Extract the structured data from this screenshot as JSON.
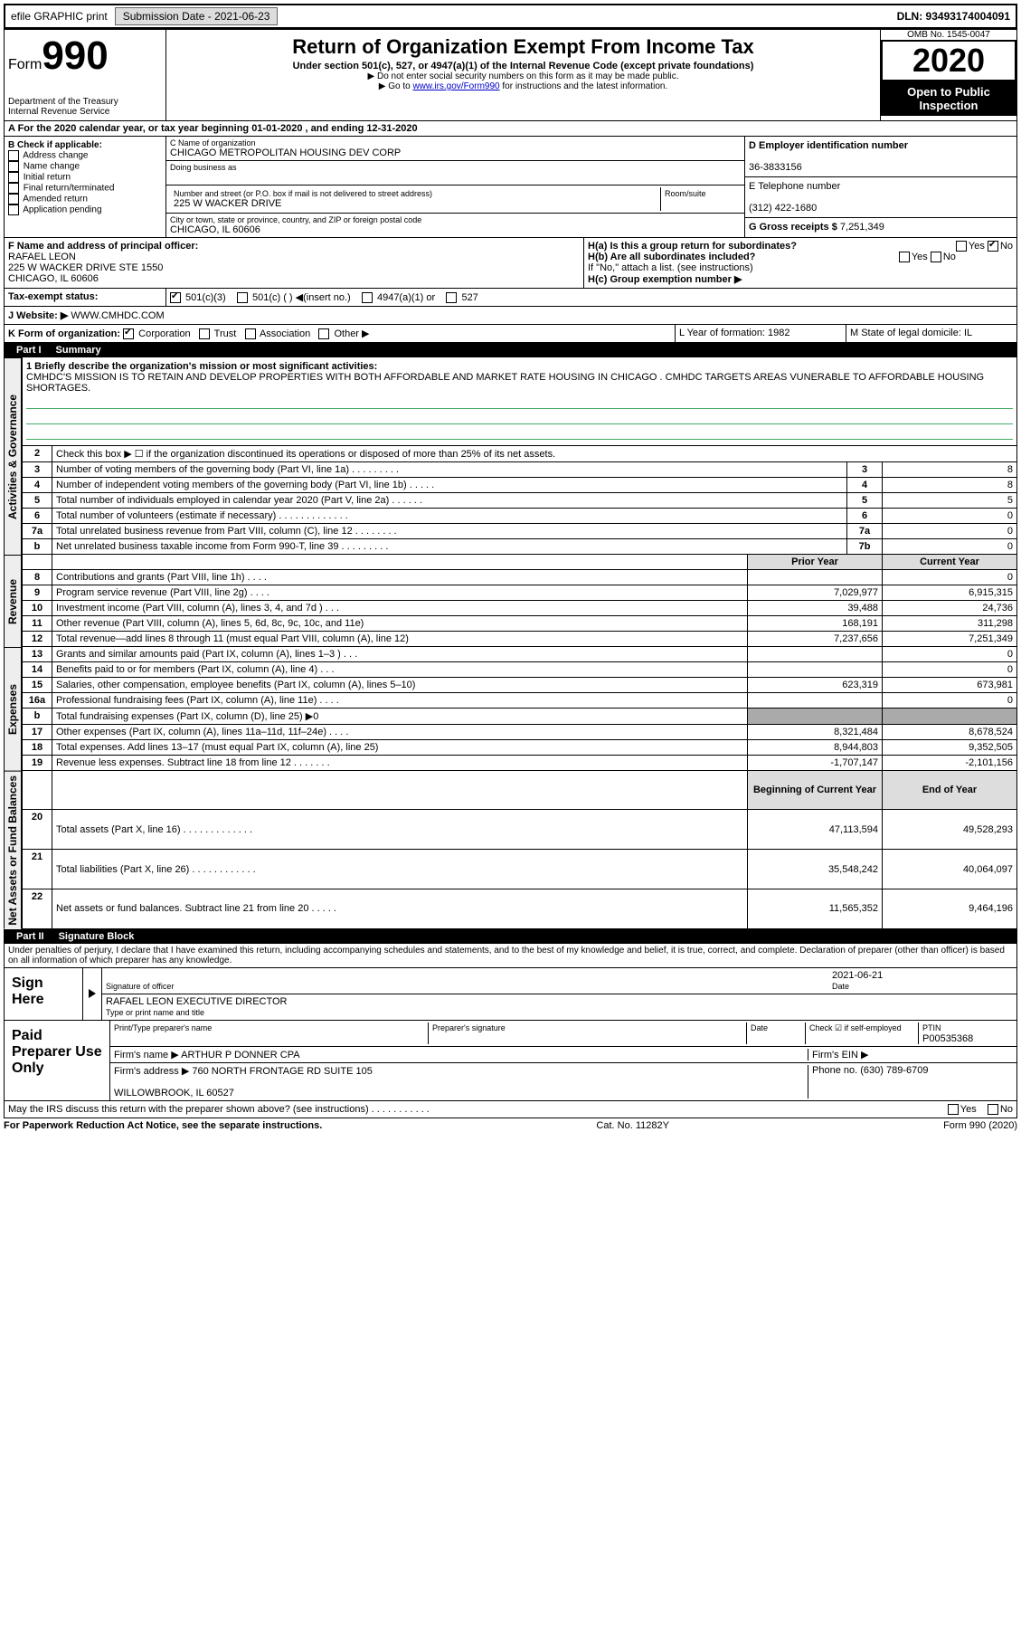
{
  "topbar": {
    "efile": "efile GRAPHIC print",
    "submission": "Submission Date - 2021-06-23",
    "dln": "DLN: 93493174004091"
  },
  "header": {
    "form": "Form",
    "formnum": "990",
    "dept": "Department of the Treasury\nInternal Revenue Service",
    "title": "Return of Organization Exempt From Income Tax",
    "subtitle": "Under section 501(c), 527, or 4947(a)(1) of the Internal Revenue Code (except private foundations)",
    "note1": "▶ Do not enter social security numbers on this form as it may be made public.",
    "note2_pre": "▶ Go to ",
    "note2_link": "www.irs.gov/Form990",
    "note2_post": " for instructions and the latest information.",
    "omb": "OMB No. 1545-0047",
    "year": "2020",
    "open": "Open to Public Inspection"
  },
  "rowA": "A For the 2020 calendar year, or tax year beginning 01-01-2020    , and ending 12-31-2020",
  "colB": {
    "label": "B Check if applicable:",
    "opts": [
      "Address change",
      "Name change",
      "Initial return",
      "Final return/terminated",
      "Amended return",
      "Application pending"
    ]
  },
  "colC": {
    "name_label": "C Name of organization",
    "name": "CHICAGO METROPOLITAN HOUSING DEV CORP",
    "dba_label": "Doing business as",
    "addr_label": "Number and street (or P.O. box if mail is not delivered to street address)",
    "addr": "225 W WACKER DRIVE",
    "room_label": "Room/suite",
    "city_label": "City or town, state or province, country, and ZIP or foreign postal code",
    "city": "CHICAGO, IL  60606"
  },
  "colD": {
    "ein_label": "D Employer identification number",
    "ein": "36-3833156",
    "phone_label": "E Telephone number",
    "phone": "(312) 422-1680",
    "gross_label": "G Gross receipts $",
    "gross": "7,251,349"
  },
  "rowF": {
    "label": "F  Name and address of principal officer:",
    "name": "RAFAEL LEON",
    "addr": "225 W WACKER DRIVE STE 1550\nCHICAGO, IL  60606"
  },
  "rowH": {
    "a": "H(a)  Is this a group return for subordinates?",
    "b": "H(b)  Are all subordinates included?",
    "b_note": "If \"No,\" attach a list. (see instructions)",
    "c": "H(c)  Group exemption number ▶"
  },
  "rowI": {
    "label": "Tax-exempt status:",
    "opts": [
      "501(c)(3)",
      "501(c) (  ) ◀(insert no.)",
      "4947(a)(1) or",
      "527"
    ]
  },
  "rowJ": {
    "label": "J Website: ▶",
    "val": "WWW.CMHDC.COM"
  },
  "rowK": {
    "label": "K Form of organization:",
    "opts": [
      "Corporation",
      "Trust",
      "Association",
      "Other ▶"
    ],
    "L": "L Year of formation: 1982",
    "M": "M State of legal domicile: IL"
  },
  "part1": {
    "label": "Part I",
    "title": "Summary"
  },
  "mission": {
    "q": "1  Briefly describe the organization's mission or most significant activities:",
    "text": "CMHDC'S MISSION IS TO RETAIN AND DEVELOP PROPERTIES WITH BOTH AFFORDABLE AND MARKET RATE HOUSING IN CHICAGO . CMHDC TARGETS AREAS VUNERABLE TO AFFORDABLE HOUSING SHORTAGES."
  },
  "gov_rows": [
    {
      "n": "2",
      "d": "Check this box ▶ ☐  if the organization discontinued its operations or disposed of more than 25% of its net assets.",
      "b": "",
      "v": ""
    },
    {
      "n": "3",
      "d": "Number of voting members of the governing body (Part VI, line 1a)  .    .    .    .    .    .    .    .    .",
      "b": "3",
      "v": "8"
    },
    {
      "n": "4",
      "d": "Number of independent voting members of the governing body (Part VI, line 1b)  .    .    .    .    .",
      "b": "4",
      "v": "8"
    },
    {
      "n": "5",
      "d": "Total number of individuals employed in calendar year 2020 (Part V, line 2a)  .    .    .    .    .    .",
      "b": "5",
      "v": "5"
    },
    {
      "n": "6",
      "d": "Total number of volunteers (estimate if necessary)   .    .    .    .    .    .    .    .    .    .    .    .    .",
      "b": "6",
      "v": "0"
    },
    {
      "n": "7a",
      "d": "Total unrelated business revenue from Part VIII, column (C), line 12  .    .    .    .    .    .    .    .",
      "b": "7a",
      "v": "0"
    },
    {
      "n": "b",
      "d": "Net unrelated business taxable income from Form 990-T, line 39   .    .    .    .    .    .    .    .    .",
      "b": "7b",
      "v": "0"
    }
  ],
  "fin_header": {
    "prior": "Prior Year",
    "curr": "Current Year"
  },
  "rev_rows": [
    {
      "n": "8",
      "d": "Contributions and grants (Part VIII, line 1h)  .    .    .    .",
      "p": "",
      "c": "0"
    },
    {
      "n": "9",
      "d": "Program service revenue (Part VIII, line 2g)   .    .    .    .",
      "p": "7,029,977",
      "c": "6,915,315"
    },
    {
      "n": "10",
      "d": "Investment income (Part VIII, column (A), lines 3, 4, and 7d )   .    .    .",
      "p": "39,488",
      "c": "24,736"
    },
    {
      "n": "11",
      "d": "Other revenue (Part VIII, column (A), lines 5, 6d, 8c, 9c, 10c, and 11e)",
      "p": "168,191",
      "c": "311,298"
    },
    {
      "n": "12",
      "d": "Total revenue—add lines 8 through 11 (must equal Part VIII, column (A), line 12)",
      "p": "7,237,656",
      "c": "7,251,349"
    }
  ],
  "exp_rows": [
    {
      "n": "13",
      "d": "Grants and similar amounts paid (Part IX, column (A), lines 1–3 )  .    .    .",
      "p": "",
      "c": "0"
    },
    {
      "n": "14",
      "d": "Benefits paid to or for members (Part IX, column (A), line 4)  .    .    .",
      "p": "",
      "c": "0"
    },
    {
      "n": "15",
      "d": "Salaries, other compensation, employee benefits (Part IX, column (A), lines 5–10)",
      "p": "623,319",
      "c": "673,981"
    },
    {
      "n": "16a",
      "d": "Professional fundraising fees (Part IX, column (A), line 11e)  .    .    .    .",
      "p": "",
      "c": "0"
    },
    {
      "n": "b",
      "d": "Total fundraising expenses (Part IX, column (D), line 25) ▶0",
      "p": "shaded",
      "c": "shaded"
    },
    {
      "n": "17",
      "d": "Other expenses (Part IX, column (A), lines 11a–11d, 11f–24e)  .    .    .    .",
      "p": "8,321,484",
      "c": "8,678,524"
    },
    {
      "n": "18",
      "d": "Total expenses. Add lines 13–17 (must equal Part IX, column (A), line 25)",
      "p": "8,944,803",
      "c": "9,352,505"
    },
    {
      "n": "19",
      "d": "Revenue less expenses. Subtract line 18 from line 12  .    .    .    .    .    .    .",
      "p": "-1,707,147",
      "c": "-2,101,156"
    }
  ],
  "net_header": {
    "beg": "Beginning of Current Year",
    "end": "End of Year"
  },
  "net_rows": [
    {
      "n": "20",
      "d": "Total assets (Part X, line 16)  .    .    .    .    .    .    .    .    .    .    .    .    .",
      "p": "47,113,594",
      "c": "49,528,293"
    },
    {
      "n": "21",
      "d": "Total liabilities (Part X, line 26)  .    .    .    .    .    .    .    .    .    .    .    .",
      "p": "35,548,242",
      "c": "40,064,097"
    },
    {
      "n": "22",
      "d": "Net assets or fund balances. Subtract line 21 from line 20  .    .    .    .    .",
      "p": "11,565,352",
      "c": "9,464,196"
    }
  ],
  "part2": {
    "label": "Part II",
    "title": "Signature Block",
    "penalty": "Under penalties of perjury, I declare that I have examined this return, including accompanying schedules and statements, and to the best of my knowledge and belief, it is true, correct, and complete. Declaration of preparer (other than officer) is based on all information of which preparer has any knowledge."
  },
  "sign": {
    "label": "Sign Here",
    "sig_label": "Signature of officer",
    "date_label": "Date",
    "date": "2021-06-21",
    "name": "RAFAEL LEON  EXECUTIVE DIRECTOR",
    "name_label": "Type or print name and title"
  },
  "paid": {
    "label": "Paid Preparer Use Only",
    "col1": "Print/Type preparer's name",
    "col2": "Preparer's signature",
    "col3": "Date",
    "col4_label": "Check ☑ if self-employed",
    "col5_label": "PTIN",
    "ptin": "P00535368",
    "firm_label": "Firm's name   ▶",
    "firm": "ARTHUR P DONNER CPA",
    "ein_label": "Firm's EIN ▶",
    "addr_label": "Firm's address ▶",
    "addr": "760 NORTH FRONTAGE RD SUITE 105",
    "addr2": "WILLOWBROOK, IL  60527",
    "phone_label": "Phone no.",
    "phone": "(630) 789-6709"
  },
  "discuss": "May the IRS discuss this return with the preparer shown above? (see instructions)   .    .    .    .    .    .    .    .    .    .    .",
  "footer": {
    "left": "For Paperwork Reduction Act Notice, see the separate instructions.",
    "mid": "Cat. No. 11282Y",
    "right": "Form 990 (2020)"
  },
  "labels": {
    "gov": "Activities & Governance",
    "rev": "Revenue",
    "exp": "Expenses",
    "net": "Net Assets or Fund Balances",
    "yes": "Yes",
    "no": "No"
  }
}
